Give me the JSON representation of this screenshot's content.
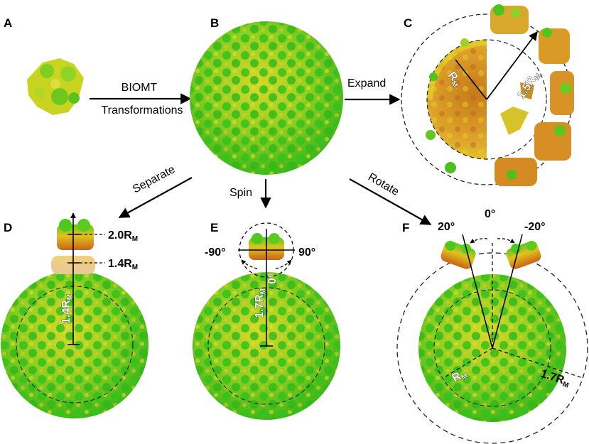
{
  "panels": {
    "a": {
      "label": "A"
    },
    "b": {
      "label": "B"
    },
    "c": {
      "label": "C"
    },
    "d": {
      "label": "D"
    },
    "e": {
      "label": "E"
    },
    "f": {
      "label": "F"
    }
  },
  "actions": {
    "biomt_line1": "BIOMT",
    "biomt_line2": "Transformations",
    "expand": "Expand",
    "separate": "Separate",
    "spin": "Spin",
    "rotate": "Rotate"
  },
  "measurements": {
    "c_rm": "R",
    "c_1_5rm": "1.5R",
    "d_2_0rm": "2.0R",
    "d_1_4rm_right": "1.4R",
    "d_1_4rm_vertical": "1.4R",
    "e_1_7rm": "1.7R",
    "f_rm": "R",
    "f_1_7rm": "1.7R",
    "subscript": "M"
  },
  "angles": {
    "e_left": "-90°",
    "e_right": "90°",
    "e_bottom": "0°",
    "f_left": "20°",
    "f_center": "0°",
    "f_right": "-20°"
  },
  "colors": {
    "capsid_green": "#4fc81e",
    "capsid_yellow": "#c9d21a",
    "capsid_orange": "#d98a1c",
    "background": "#ffffff"
  }
}
